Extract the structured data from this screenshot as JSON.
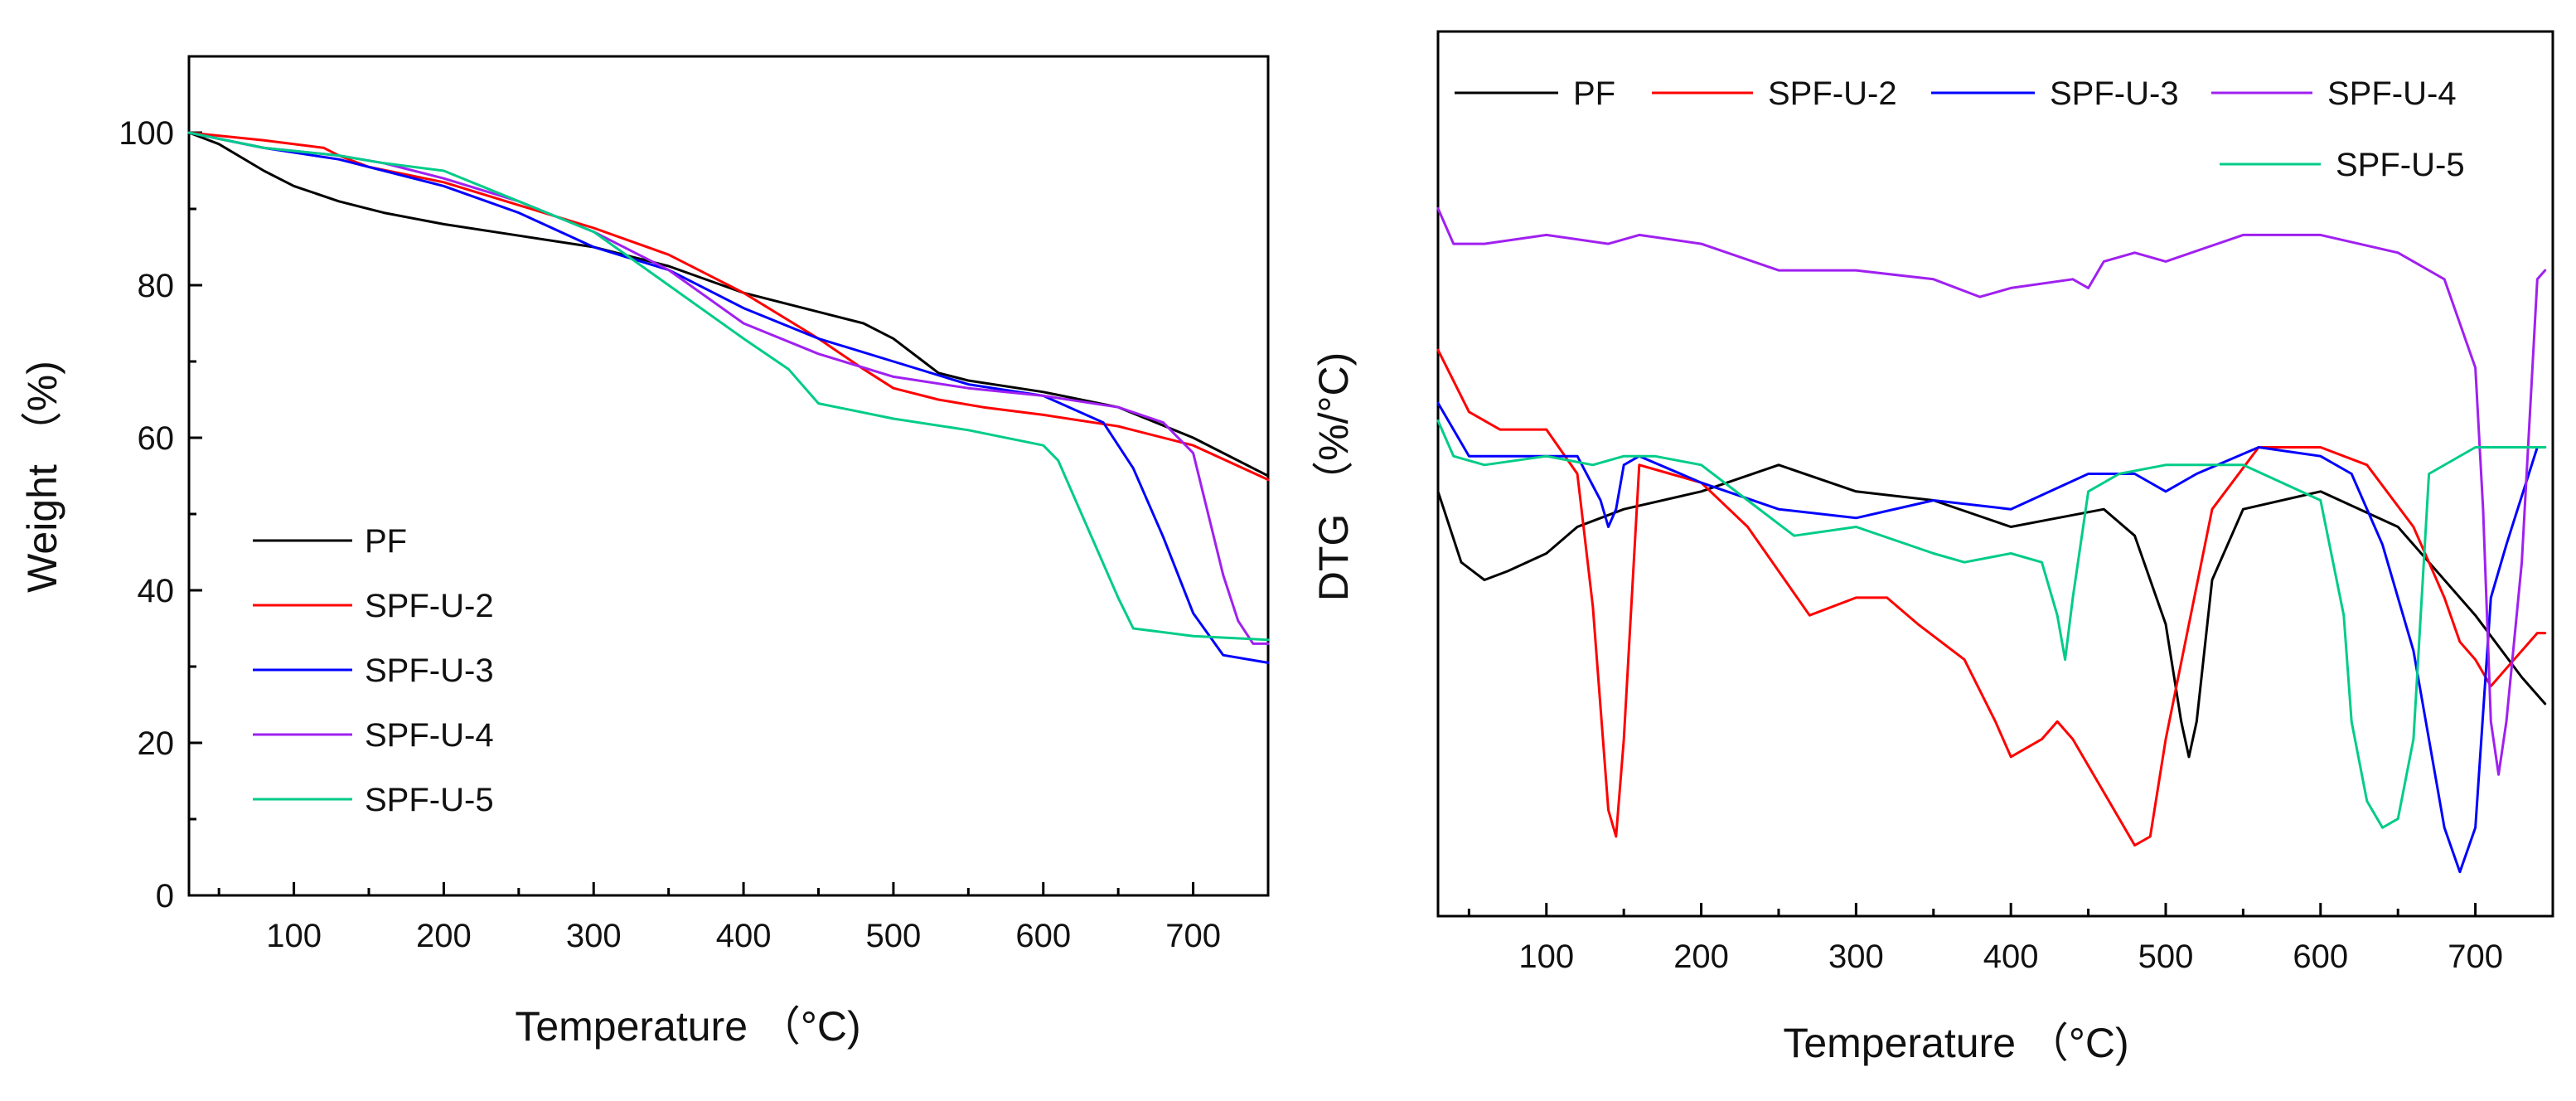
{
  "chart_data": [
    {
      "type": "line",
      "title": "",
      "xlabel": "Temperature （°C)",
      "ylabel": "Weight （%)",
      "xlim": [
        30,
        750
      ],
      "ylim": [
        0,
        110
      ],
      "xticks": [
        100,
        200,
        300,
        400,
        500,
        600,
        700
      ],
      "yticks": [
        0,
        20,
        40,
        60,
        80,
        100
      ],
      "grid": false,
      "legend_position": "bottom-left",
      "series": [
        {
          "name": "PF",
          "color": "#000000",
          "x": [
            30,
            50,
            80,
            100,
            130,
            160,
            200,
            250,
            300,
            350,
            400,
            450,
            480,
            500,
            520,
            530,
            550,
            600,
            650,
            700,
            750
          ],
          "y": [
            100,
            98.5,
            95,
            93,
            91,
            89.5,
            88,
            86.5,
            85,
            82.5,
            79,
            76.5,
            75,
            73,
            70,
            68.5,
            67.5,
            66,
            64,
            60,
            55
          ]
        },
        {
          "name": "SPF-U-2",
          "color": "#ff0000",
          "x": [
            30,
            80,
            120,
            130,
            150,
            200,
            250,
            300,
            350,
            400,
            450,
            480,
            500,
            530,
            560,
            600,
            650,
            700,
            750
          ],
          "y": [
            100,
            99,
            98,
            97,
            95.5,
            93.5,
            90.5,
            87.5,
            84,
            79,
            73,
            69,
            66.5,
            65,
            64,
            63,
            61.5,
            59,
            54.5
          ]
        },
        {
          "name": "SPF-U-3",
          "color": "#0000ff",
          "x": [
            30,
            80,
            130,
            160,
            200,
            250,
            300,
            350,
            400,
            450,
            500,
            550,
            600,
            640,
            660,
            680,
            700,
            720,
            750
          ],
          "y": [
            100,
            98,
            96.5,
            95,
            93,
            89.5,
            85,
            82,
            77,
            73,
            70,
            67,
            65.5,
            62,
            56,
            47,
            37,
            31.5,
            30.5
          ]
        },
        {
          "name": "SPF-U-4",
          "color": "#a020f0",
          "x": [
            30,
            80,
            130,
            160,
            200,
            250,
            300,
            350,
            400,
            450,
            500,
            550,
            600,
            650,
            680,
            700,
            710,
            720,
            730,
            740,
            750
          ],
          "y": [
            100,
            98,
            97,
            96,
            94,
            91,
            87,
            82,
            75,
            71,
            68,
            66.5,
            65.5,
            64,
            62,
            58,
            50,
            42,
            36,
            33,
            33
          ]
        },
        {
          "name": "SPF-U-5",
          "color": "#00cc88",
          "x": [
            30,
            80,
            130,
            160,
            200,
            250,
            300,
            350,
            400,
            430,
            450,
            500,
            550,
            600,
            610,
            630,
            650,
            660,
            700,
            750
          ],
          "y": [
            100,
            98,
            97,
            96,
            95,
            91,
            87,
            80,
            73,
            69,
            64.5,
            62.5,
            61,
            59,
            57,
            48,
            39,
            35,
            34,
            33.5
          ]
        }
      ]
    },
    {
      "type": "line",
      "title": "",
      "xlabel": "Temperature （°C)",
      "ylabel": "DTG （%/°C)",
      "xlim": [
        30,
        750
      ],
      "ylim": [
        0,
        100
      ],
      "xticks": [
        100,
        200,
        300,
        400,
        500,
        600,
        700
      ],
      "yticks_labeled": false,
      "grid": false,
      "legend_position": "top",
      "series": [
        {
          "name": "PF",
          "color": "#000000",
          "x": [
            30,
            45,
            60,
            75,
            100,
            120,
            150,
            200,
            250,
            300,
            350,
            400,
            430,
            460,
            480,
            500,
            510,
            515,
            520,
            530,
            550,
            600,
            650,
            700,
            730,
            745
          ],
          "y": [
            48,
            40,
            38,
            39,
            41,
            44,
            46,
            48,
            51,
            48,
            47,
            44,
            45,
            46,
            43,
            33,
            22,
            18,
            22,
            38,
            46,
            48,
            44,
            34,
            27,
            24
          ]
        },
        {
          "name": "SPF-U-2",
          "color": "#ff0000",
          "x": [
            30,
            50,
            70,
            100,
            120,
            130,
            140,
            145,
            150,
            160,
            180,
            200,
            230,
            270,
            300,
            320,
            340,
            370,
            390,
            400,
            420,
            430,
            440,
            460,
            480,
            490,
            500,
            530,
            560,
            600,
            630,
            660,
            680,
            690,
            700,
            710,
            720,
            740,
            745
          ],
          "y": [
            64,
            57,
            55,
            55,
            50,
            35,
            12,
            9,
            20,
            51,
            50,
            49,
            44,
            34,
            36,
            36,
            33,
            29,
            22,
            18,
            20,
            22,
            20,
            14,
            8,
            9,
            20,
            46,
            53,
            53,
            51,
            44,
            36,
            31,
            29,
            26,
            28,
            32,
            32
          ]
        },
        {
          "name": "SPF-U-3",
          "color": "#0000ff",
          "x": [
            30,
            50,
            80,
            120,
            135,
            140,
            145,
            150,
            160,
            200,
            250,
            300,
            350,
            400,
            450,
            480,
            500,
            520,
            560,
            600,
            620,
            640,
            660,
            680,
            690,
            700,
            710,
            720,
            740,
            745
          ],
          "y": [
            58,
            52,
            52,
            52,
            47,
            44,
            46,
            51,
            52,
            49,
            46,
            45,
            47,
            46,
            50,
            50,
            48,
            50,
            53,
            52,
            50,
            42,
            30,
            10,
            5,
            10,
            36,
            42,
            53,
            53
          ]
        },
        {
          "name": "SPF-U-4",
          "color": "#a020f0",
          "x": [
            30,
            40,
            60,
            100,
            140,
            160,
            200,
            250,
            300,
            350,
            380,
            400,
            440,
            450,
            460,
            480,
            500,
            550,
            600,
            650,
            680,
            700,
            705,
            710,
            715,
            720,
            730,
            740,
            745
          ],
          "y": [
            80,
            76,
            76,
            77,
            76,
            77,
            76,
            73,
            73,
            72,
            70,
            71,
            72,
            71,
            74,
            75,
            74,
            77,
            77,
            75,
            72,
            62,
            46,
            22,
            16,
            22,
            40,
            72,
            73
          ]
        },
        {
          "name": "SPF-U-5",
          "color": "#00cc88",
          "x": [
            30,
            40,
            60,
            100,
            130,
            150,
            170,
            200,
            230,
            260,
            300,
            350,
            370,
            400,
            420,
            430,
            435,
            440,
            450,
            470,
            500,
            550,
            600,
            615,
            620,
            630,
            640,
            650,
            660,
            670,
            700,
            745
          ],
          "y": [
            56,
            52,
            51,
            52,
            51,
            52,
            52,
            51,
            47,
            43,
            44,
            41,
            40,
            41,
            40,
            34,
            29,
            36,
            48,
            50,
            51,
            51,
            47,
            34,
            22,
            13,
            10,
            11,
            20,
            50,
            53,
            53
          ]
        }
      ]
    }
  ]
}
